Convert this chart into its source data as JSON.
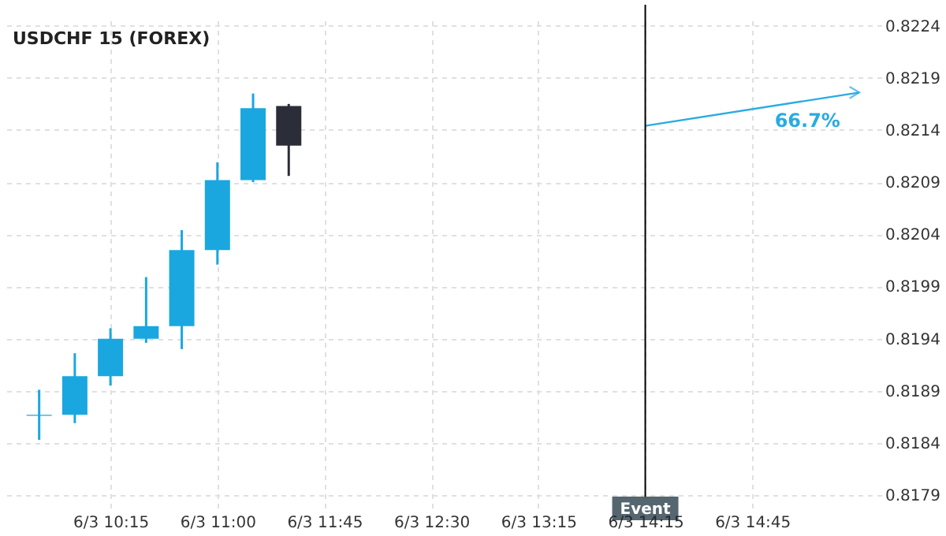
{
  "chart_data": {
    "type": "candlestick",
    "title": "USDCHF 15 (FOREX)",
    "categories": [
      null,
      null,
      "6/3 10:15",
      null,
      null,
      "6/3 11:00",
      null,
      null,
      "6/3 11:45",
      null,
      null,
      "6/3 12:30",
      null,
      null,
      "6/3 13:15",
      null,
      null,
      "6/3 14:15",
      null,
      null,
      "6/3 14:45",
      null,
      null,
      null
    ],
    "ohlc": [
      [
        0.81866,
        0.81891,
        0.81843,
        0.81867
      ],
      [
        0.81867,
        0.81926,
        0.81859,
        0.81904
      ],
      [
        0.81904,
        0.8195,
        0.81895,
        0.8194
      ],
      [
        0.8194,
        0.81999,
        0.81936,
        0.81952
      ],
      [
        0.81952,
        0.82044,
        0.8193,
        0.82025
      ],
      [
        0.82025,
        0.82109,
        0.82011,
        0.82092
      ],
      [
        0.82092,
        0.82175,
        0.8209,
        0.82161
      ],
      [
        0.82163,
        0.82165,
        0.82096,
        0.82125
      ],
      null,
      null,
      null,
      null,
      null,
      null,
      null,
      null,
      null,
      null,
      null,
      null,
      null,
      null,
      null,
      null
    ],
    "colors": [
      "#1aa7e0",
      "#1aa7e0",
      "#1aa7e0",
      "#1aa7e0",
      "#1aa7e0",
      "#1aa7e0",
      "#1aa7e0",
      "#2b2d38",
      null,
      null,
      null,
      null,
      null,
      null,
      null,
      null,
      null,
      null,
      null,
      null,
      null,
      null,
      null,
      null
    ],
    "series": [
      {
        "type": "line",
        "color": "#29abe2",
        "values": [
          null,
          null,
          null,
          null,
          null,
          null,
          null,
          null,
          null,
          null,
          null,
          null,
          null,
          null,
          null,
          null,
          null,
          0.82144,
          null,
          null,
          null,
          null,
          null,
          0.82176
        ]
      }
    ],
    "annotations": [
      "66.7%"
    ],
    "ref_lines": [
      {
        "axis": "x",
        "value": "6/3 14:15",
        "label": "Event",
        "color": "#000000"
      }
    ],
    "ylim": [
      0.81775,
      0.82245
    ],
    "yticks": [
      0.8179,
      0.8184,
      0.8189,
      0.8194,
      0.8199,
      0.8204,
      0.8209,
      0.8214,
      0.8219,
      0.8224
    ],
    "grid": true
  }
}
